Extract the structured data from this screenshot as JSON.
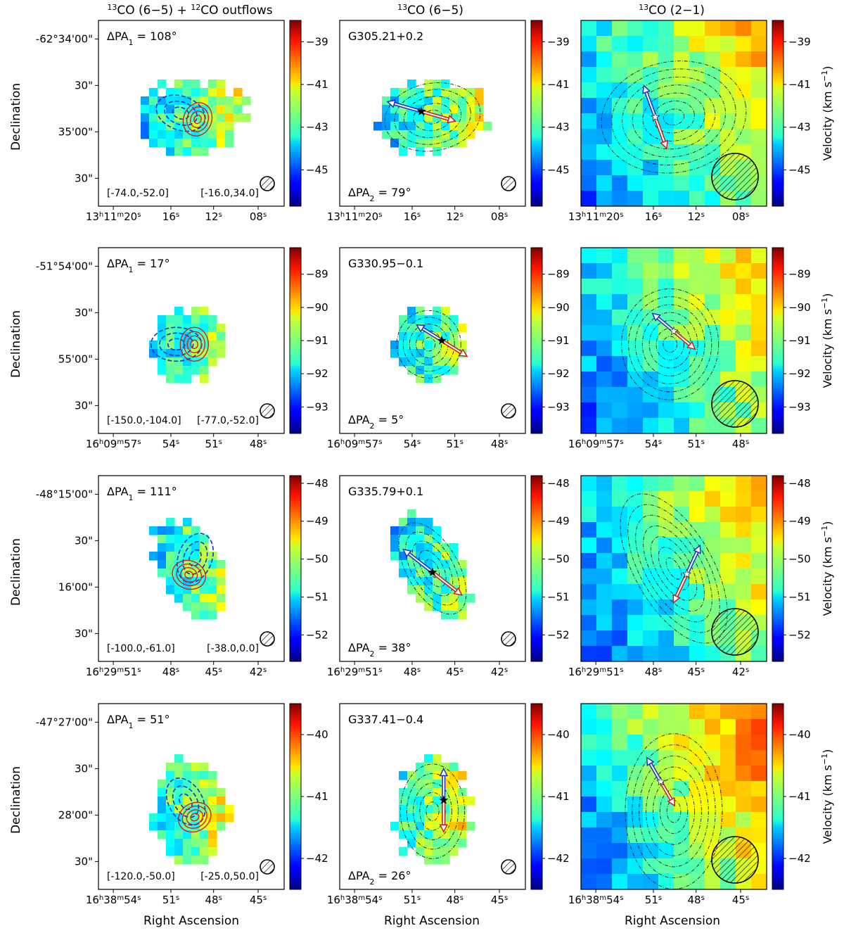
{
  "columns": [
    {
      "title_pre": "13",
      "title_mid": "CO (6−5) + ",
      "title_pre2": "12",
      "title_post": "CO outflows"
    },
    {
      "title_pre": "13",
      "title_mid": "CO (6−5)",
      "title_pre2": "",
      "title_post": ""
    },
    {
      "title_pre": "13",
      "title_mid": "CO (2−1)",
      "title_pre2": "",
      "title_post": ""
    }
  ],
  "axis": {
    "ylabel": "Declination",
    "xlabel": "Right Ascension",
    "cbar_label": "Velocity (km s",
    "cbar_label_sup": "−1",
    "cbar_label_end": ")"
  },
  "rows": [
    {
      "source": "G305.21+0.2",
      "dpa1": "108°",
      "dpa2": "79°",
      "dec_ticks": [
        "-62°34'00\"",
        "30\"",
        "35'00\"",
        "30\""
      ],
      "ra_ticks": [
        {
          "h": "13",
          "hl": "h",
          "m": "11",
          "ml": "m",
          "s": "20",
          "sl": "s"
        },
        {
          "s": "16",
          "sl": "s"
        },
        {
          "s": "12",
          "sl": "s"
        },
        {
          "s": "08",
          "sl": "s"
        }
      ],
      "blue_range": "[-74.0,-52.0]",
      "red_range": "[-16.0,34.0]",
      "cbar_ticks": [
        "-39",
        "-41",
        "-43",
        "-45"
      ],
      "vmin": -46.7,
      "vmax": -38.0,
      "v0": -42.7,
      "vgrad": 1.8
    },
    {
      "source": "G330.95−0.1",
      "dpa1": "17°",
      "dpa2": "5°",
      "dec_ticks": [
        "-51°54'00\"",
        "30\"",
        "55'00\"",
        "30\""
      ],
      "ra_ticks": [
        {
          "h": "16",
          "hl": "h",
          "m": "09",
          "ml": "m",
          "s": "57",
          "sl": "s"
        },
        {
          "s": "54",
          "sl": "s"
        },
        {
          "s": "51",
          "sl": "s"
        },
        {
          "s": "48",
          "sl": "s"
        }
      ],
      "blue_range": "[-150.0,-104.0]",
      "red_range": "[-77.0,-52.0]",
      "cbar_ticks": [
        "-89",
        "-90",
        "-91",
        "-92",
        "-93"
      ],
      "vmin": -93.8,
      "vmax": -88.2,
      "v0": -91.3,
      "vgrad": 1.2
    },
    {
      "source": "G335.79+0.1",
      "dpa1": "111°",
      "dpa2": "38°",
      "dec_ticks": [
        "-48°15'00\"",
        "30\"",
        "16'00\"",
        "30\""
      ],
      "ra_ticks": [
        {
          "h": "16",
          "hl": "h",
          "m": "29",
          "ml": "m",
          "s": "51",
          "sl": "s"
        },
        {
          "s": "48",
          "sl": "s"
        },
        {
          "s": "45",
          "sl": "s"
        },
        {
          "s": "42",
          "sl": "s"
        }
      ],
      "blue_range": "[-100.0,-61.0]",
      "red_range": "[-38.0,0.0]",
      "cbar_ticks": [
        "-48",
        "-49",
        "-50",
        "-51",
        "-52"
      ],
      "vmin": -52.7,
      "vmax": -47.8,
      "v0": -50.5,
      "vgrad": 1.1
    },
    {
      "source": "G337.41−0.4",
      "dpa1": "51°",
      "dpa2": "26°",
      "dec_ticks": [
        "-47°27'00\"",
        "30\"",
        "28'00\"",
        "30\""
      ],
      "ra_ticks": [
        {
          "h": "16",
          "hl": "h",
          "m": "38",
          "ml": "m",
          "s": "54",
          "sl": "s"
        },
        {
          "s": "51",
          "sl": "s"
        },
        {
          "s": "48",
          "sl": "s"
        },
        {
          "s": "45",
          "sl": "s"
        }
      ],
      "blue_range": "[-120.0,-50.0]",
      "red_range": "[-25.0,50.0]",
      "cbar_ticks": [
        "-40",
        "-41",
        "-42"
      ],
      "vmin": -42.5,
      "vmax": -39.5,
      "v0": -41.0,
      "vgrad": 0.8
    }
  ]
}
